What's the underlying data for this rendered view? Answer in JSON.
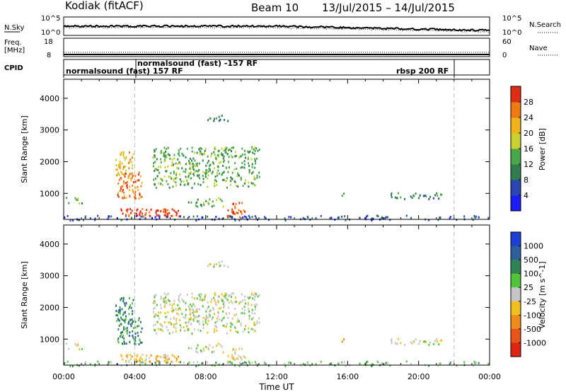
{
  "header": {
    "station": "Kodiak (fitACF)",
    "beam": "Beam 10",
    "date_range": "13/Jul/2015 – 14/Jul/2015"
  },
  "sky_panel": {
    "left_label": "N.Sky",
    "right_label": "N.Search",
    "tick_top": "10^5",
    "tick_bottom": "10^0"
  },
  "freq_panel": {
    "label_line1": "Freq.",
    "label_line2": "[MHz]",
    "right_label": "Nave",
    "left_ticks": [
      "18",
      "8"
    ],
    "right_ticks": [
      "60",
      "0"
    ]
  },
  "cpid_panel": {
    "label": "CPID",
    "modes": [
      {
        "text": "normalsound (fast) 157 RF",
        "start_hour": 0
      },
      {
        "text": "normalsound (fast) -157 RF",
        "start_hour": 4
      },
      {
        "text": "rbsp 200 RF",
        "start_hour": 22
      }
    ]
  },
  "chart_data": [
    {
      "type": "heatmap",
      "quantity": "Power",
      "ylabel": "Slant Range [km]",
      "xlim": [
        0,
        24
      ],
      "ylim": [
        180,
        4600
      ],
      "yticks": [
        1000,
        2000,
        3000,
        4000
      ],
      "colorbar": {
        "label": "Power [dB]",
        "ticks": [
          "4",
          "8",
          "12",
          "16",
          "20",
          "24",
          "28"
        ],
        "colors": [
          "#1c1cff",
          "#2a46b0",
          "#2f7c4e",
          "#47a847",
          "#c8d22e",
          "#f0b418",
          "#f07a12",
          "#e02d12"
        ]
      },
      "regions": [
        {
          "x": [
            0.0,
            24.0
          ],
          "y": [
            180,
            330
          ],
          "level": 1,
          "density": 0.5
        },
        {
          "x": [
            2.9,
            3.9
          ],
          "y": [
            1600,
            2350
          ],
          "level": 5,
          "density": 0.75
        },
        {
          "x": [
            3.0,
            4.4
          ],
          "y": [
            850,
            1700
          ],
          "level": 6,
          "density": 0.8
        },
        {
          "x": [
            3.2,
            6.5
          ],
          "y": [
            300,
            550
          ],
          "level": 7,
          "density": 0.9
        },
        {
          "x": [
            5.0,
            11.0
          ],
          "y": [
            1200,
            2500
          ],
          "level": 3,
          "density": 0.6
        },
        {
          "x": [
            8.0,
            9.5
          ],
          "y": [
            3300,
            3500
          ],
          "level": 2,
          "density": 0.5
        },
        {
          "x": [
            0.0,
            1.0
          ],
          "y": [
            700,
            900
          ],
          "level": 3,
          "density": 0.5
        },
        {
          "x": [
            7.0,
            9.0
          ],
          "y": [
            600,
            900
          ],
          "level": 3,
          "density": 0.5
        },
        {
          "x": [
            9.0,
            10.2
          ],
          "y": [
            280,
            750
          ],
          "level": 6,
          "density": 0.6
        },
        {
          "x": [
            18.3,
            21.3
          ],
          "y": [
            850,
            1050
          ],
          "level": 2,
          "density": 0.6
        },
        {
          "x": [
            15.6,
            15.8
          ],
          "y": [
            900,
            1100
          ],
          "level": 3,
          "density": 0.7
        }
      ]
    },
    {
      "type": "heatmap",
      "quantity": "Velocity",
      "ylabel": "Slant Range [km]",
      "xlabel": "Time UT",
      "xlim": [
        0,
        24
      ],
      "ylim": [
        180,
        4600
      ],
      "yticks": [
        1000,
        2000,
        3000,
        4000
      ],
      "xticks": [
        "00:00",
        "04:00",
        "08:00",
        "12:00",
        "16:00",
        "20:00",
        "00:00"
      ],
      "colorbar": {
        "label": "Velocity [m s^-1]",
        "ticks": [
          "1000",
          "500",
          "100",
          "25",
          "-25",
          "-100",
          "-500",
          "-1000"
        ],
        "colors": [
          "#1d3fd6",
          "#2c5f9b",
          "#2e8452",
          "#52c43a",
          "#c6c6c6",
          "#f2c01d",
          "#f08a1a",
          "#e8541a",
          "#e02412"
        ]
      },
      "regions": [
        {
          "x": [
            0.0,
            24.0
          ],
          "y": [
            180,
            330
          ],
          "level": 3,
          "density": 0.5
        },
        {
          "x": [
            2.9,
            3.9
          ],
          "y": [
            1600,
            2350
          ],
          "level": 2,
          "density": 0.75
        },
        {
          "x": [
            3.0,
            4.4
          ],
          "y": [
            850,
            1700
          ],
          "level": 2,
          "density": 0.8
        },
        {
          "x": [
            3.2,
            6.5
          ],
          "y": [
            300,
            550
          ],
          "level": 5,
          "density": 0.9
        },
        {
          "x": [
            5.0,
            11.0
          ],
          "y": [
            1200,
            2500
          ],
          "level": 4,
          "density": 0.6
        },
        {
          "x": [
            8.0,
            9.5
          ],
          "y": [
            3300,
            3500
          ],
          "level": 4,
          "density": 0.5
        },
        {
          "x": [
            0.0,
            1.0
          ],
          "y": [
            700,
            900
          ],
          "level": 4,
          "density": 0.5
        },
        {
          "x": [
            7.0,
            9.0
          ],
          "y": [
            600,
            900
          ],
          "level": 4,
          "density": 0.5
        },
        {
          "x": [
            9.0,
            10.2
          ],
          "y": [
            280,
            750
          ],
          "level": 4,
          "density": 0.6
        },
        {
          "x": [
            18.3,
            21.3
          ],
          "y": [
            850,
            1050
          ],
          "level": 4,
          "density": 0.6
        },
        {
          "x": [
            15.6,
            15.8
          ],
          "y": [
            900,
            1100
          ],
          "level": 6,
          "density": 0.7
        }
      ]
    }
  ]
}
